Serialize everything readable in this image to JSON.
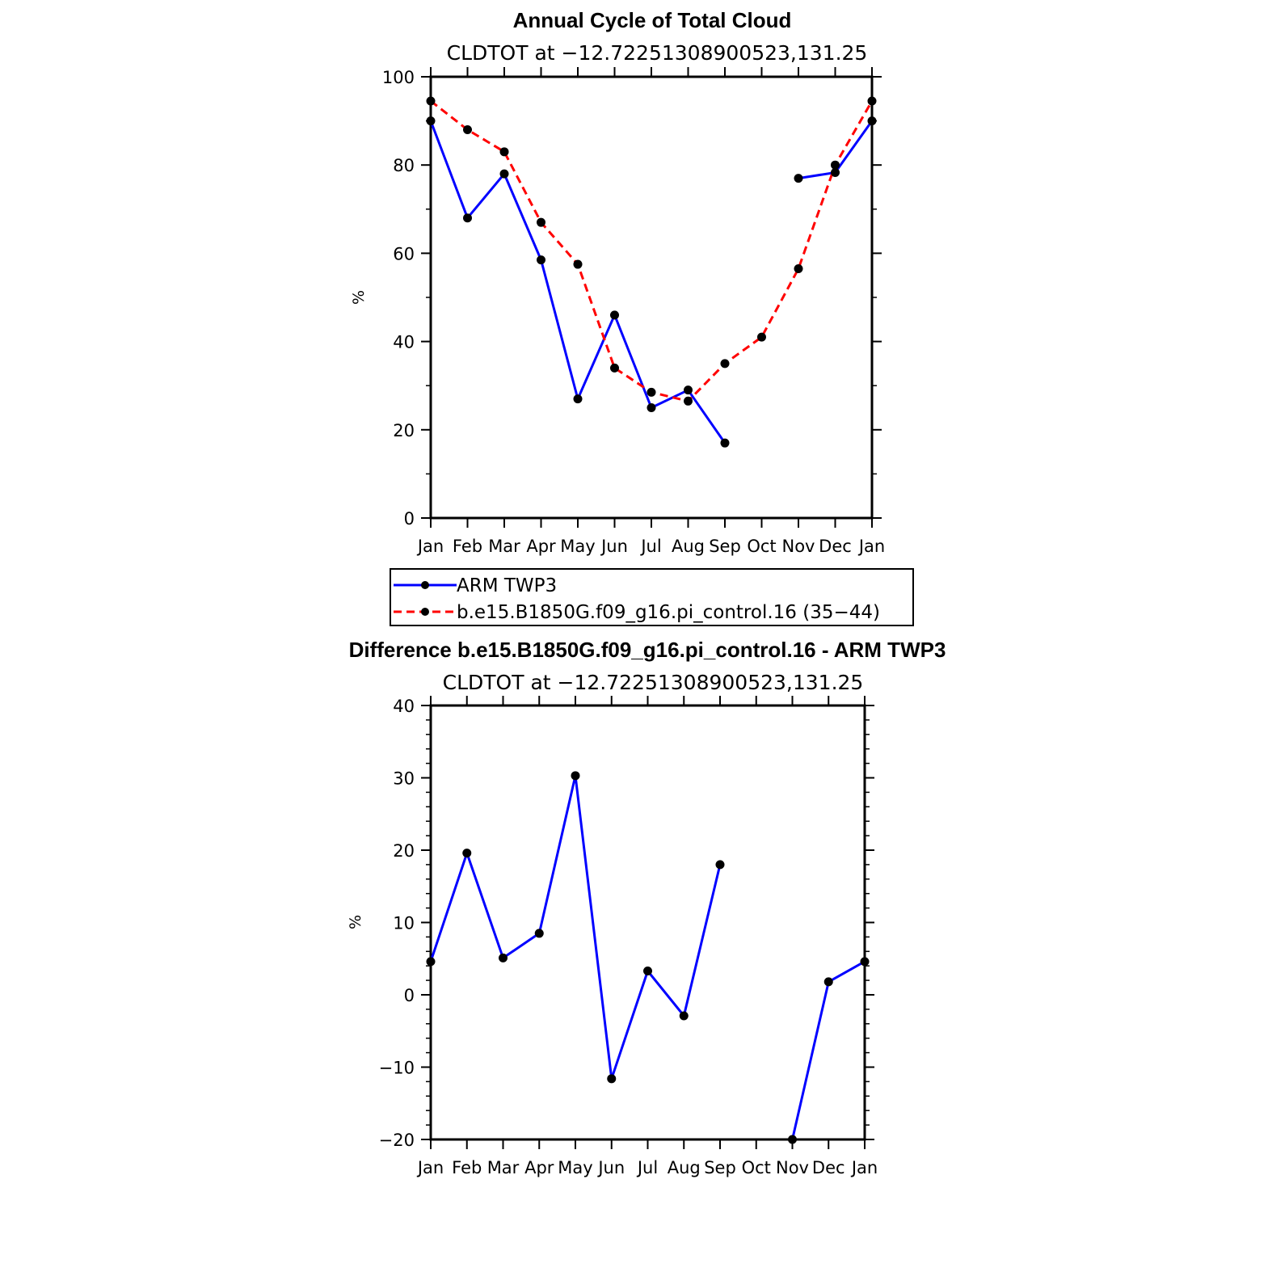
{
  "chart_data": [
    {
      "type": "line",
      "title": "Annual Cycle of Total Cloud",
      "subtitle": "CLDTOT at −12.72251308900523,131.25",
      "ylabel": "%",
      "xlabel": "",
      "categories": [
        "Jan",
        "Feb",
        "Mar",
        "Apr",
        "May",
        "Jun",
        "Jul",
        "Aug",
        "Sep",
        "Oct",
        "Nov",
        "Dec",
        "Jan"
      ],
      "ylim": [
        0,
        100
      ],
      "yticks": [
        "0",
        "20",
        "40",
        "60",
        "80",
        "100"
      ],
      "series": [
        {
          "name": "ARM TWP3",
          "color": "#0000ff",
          "dash": "solid",
          "values": [
            90,
            68,
            78,
            58.5,
            27,
            46,
            25,
            29,
            17,
            null,
            77,
            78.3,
            90
          ]
        },
        {
          "name": "b.e15.B1850G.f09_g16.pi_control.16 (35−44)",
          "color": "#ff0000",
          "dash": "dashed",
          "values": [
            94.5,
            88,
            83,
            67,
            57.5,
            34,
            28.5,
            26.5,
            35,
            41,
            56.5,
            80,
            94.5
          ]
        }
      ],
      "legend": "below"
    },
    {
      "type": "line",
      "title": "Difference b.e15.B1850G.f09_g16.pi_control.16 - ARM TWP3",
      "subtitle": "CLDTOT at −12.72251308900523,131.25",
      "ylabel": "%",
      "xlabel": "",
      "categories": [
        "Jan",
        "Feb",
        "Mar",
        "Apr",
        "May",
        "Jun",
        "Jul",
        "Aug",
        "Sep",
        "Oct",
        "Nov",
        "Dec",
        "Jan"
      ],
      "ylim": [
        -20,
        40
      ],
      "yticks": [
        "−20",
        "−10",
        "0",
        "10",
        "20",
        "30",
        "40"
      ],
      "series": [
        {
          "color": "#0000ff",
          "dash": "solid",
          "values": [
            4.6,
            19.6,
            5.1,
            8.5,
            30.3,
            -11.6,
            3.3,
            -2.9,
            18,
            null,
            -20,
            1.8,
            4.6
          ]
        }
      ]
    }
  ]
}
